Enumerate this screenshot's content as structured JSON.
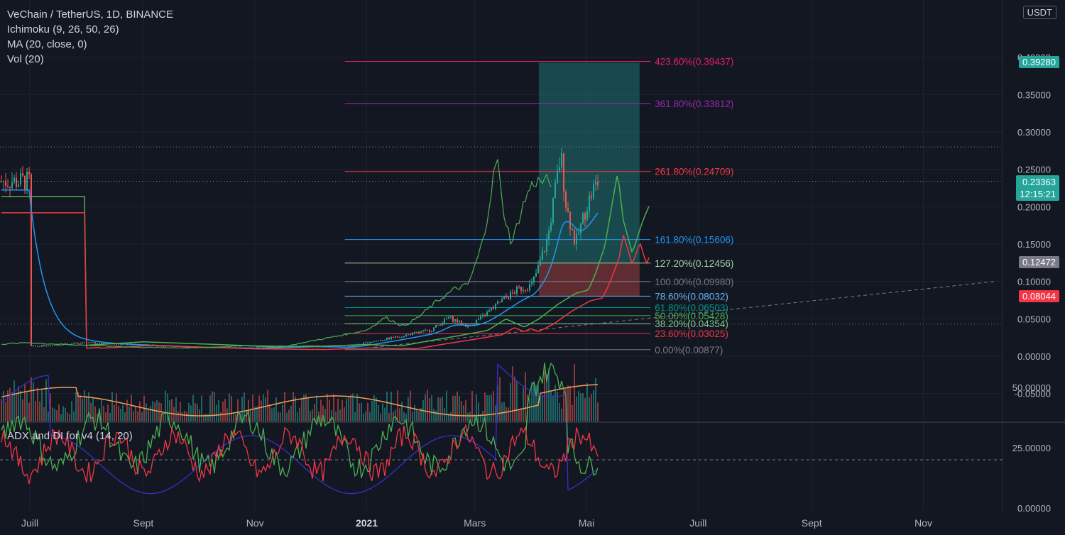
{
  "legend": {
    "symbol": "VeChain / TetherUS, 1D, BINANCE",
    "ichimoku": "Ichimoku (9, 26, 50, 26)",
    "ma": "MA (20, close, 0)",
    "vol": "Vol (20)"
  },
  "adx_legend": "ADX and DI for v4 (14, 20)",
  "currency": "USDT",
  "price_tags": {
    "target": "0.39280",
    "last": "0.23363",
    "countdown": "12:15:21",
    "entry": "0.12472",
    "stop": "0.08044"
  },
  "colors": {
    "background": "#131722",
    "grid": "#1f2330",
    "ma": "#2196f3",
    "span_a": "#4caf50",
    "span_b": "#f23645",
    "chikou": "#4caf50",
    "target_zone": "#26a69a",
    "stop_zone": "#ef5350",
    "adx": "#3a2ec9",
    "di_plus": "#4caf50",
    "di_minus": "#f23645",
    "vol_ma": "#f0a05c"
  },
  "chart_data": [
    {
      "type": "line",
      "title": "VeChain / TetherUS, 1D, BINANCE",
      "x_ticks": [
        "Juill",
        "Sept",
        "Nov",
        "2021",
        "Mars",
        "Mai",
        "Juill",
        "Sept",
        "Nov"
      ],
      "y_ticks": [
        "0.40000",
        "0.35000",
        "0.30000",
        "0.25000",
        "0.20000",
        "0.15000",
        "0.10000",
        "0.05000",
        "0.00000",
        "-0.05000"
      ],
      "ylim": [
        -0.09,
        0.45
      ],
      "price_series": {
        "name": "VETUSDT",
        "points": [
          [
            "2020-07-01",
            0.013
          ],
          [
            "2020-08-01",
            0.018
          ],
          [
            "2020-09-01",
            0.015
          ],
          [
            "2020-10-01",
            0.012
          ],
          [
            "2020-11-01",
            0.011
          ],
          [
            "2020-12-01",
            0.014
          ],
          [
            "2020-12-20",
            0.012
          ],
          [
            "2021-01-05",
            0.02
          ],
          [
            "2021-01-20",
            0.027
          ],
          [
            "2021-02-05",
            0.035
          ],
          [
            "2021-02-15",
            0.052
          ],
          [
            "2021-02-25",
            0.04
          ],
          [
            "2021-03-05",
            0.052
          ],
          [
            "2021-03-15",
            0.073
          ],
          [
            "2021-03-25",
            0.09
          ],
          [
            "2021-04-01",
            0.095
          ],
          [
            "2021-04-05",
            0.12
          ],
          [
            "2021-04-10",
            0.16
          ],
          [
            "2021-04-17",
            0.27
          ],
          [
            "2021-04-20",
            0.2
          ],
          [
            "2021-04-25",
            0.15
          ],
          [
            "2021-05-01",
            0.2
          ],
          [
            "2021-05-05",
            0.225
          ],
          [
            "2021-05-08",
            0.234
          ]
        ]
      },
      "fibonacci": [
        {
          "label": "423.60%(0.39437)",
          "value": 0.39437,
          "color": "#e91e63"
        },
        {
          "label": "361.80%(0.33812)",
          "value": 0.33812,
          "color": "#9c27b0"
        },
        {
          "label": "261.80%(0.24709)",
          "value": 0.24709,
          "color": "#f23645"
        },
        {
          "label": "161.80%(0.15606)",
          "value": 0.15606,
          "color": "#2196f3"
        },
        {
          "label": "127.20%(0.12456)",
          "value": 0.12456,
          "color": "#a5d6a7"
        },
        {
          "label": "100.00%(0.09980)",
          "value": 0.0998,
          "color": "#787b86"
        },
        {
          "label": "78.60%(0.08032)",
          "value": 0.08032,
          "color": "#64b5f6"
        },
        {
          "label": "61.80%(0.06503)",
          "value": 0.06503,
          "color": "#009688"
        },
        {
          "label": "50.00%(0.05428)",
          "value": 0.05428,
          "color": "#4caf50"
        },
        {
          "label": "38.20%(0.04354)",
          "value": 0.04354,
          "color": "#81c784"
        },
        {
          "label": "23.60%(0.03025)",
          "value": 0.03025,
          "color": "#f23645"
        },
        {
          "label": "0.00%(0.00877)",
          "value": 0.00877,
          "color": "#787b86"
        }
      ],
      "position": {
        "target": 0.3928,
        "entry": 0.12472,
        "stop": 0.08044,
        "start": "2021-04-05",
        "end": "2021-05-30"
      }
    },
    {
      "type": "line",
      "title": "ADX and DI for v4 (14, 20)",
      "y_ticks": [
        "50.00000",
        "25.00000",
        "0.00000"
      ],
      "ylim": [
        0,
        70
      ],
      "threshold": 20
    }
  ]
}
